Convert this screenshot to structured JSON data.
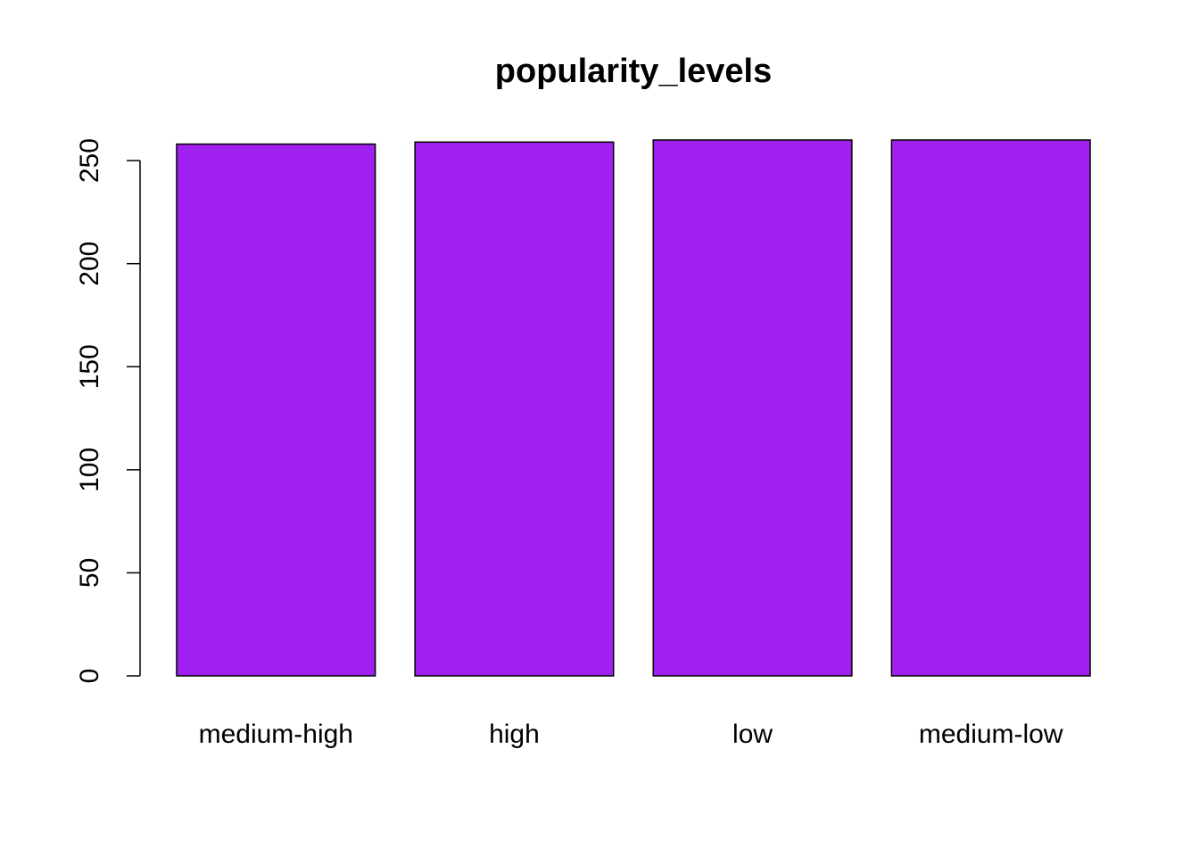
{
  "chart_data": {
    "type": "bar",
    "title": "popularity_levels",
    "xlabel": "",
    "ylabel": "",
    "categories": [
      "medium-high",
      "high",
      "low",
      "medium-low"
    ],
    "values": [
      258,
      259,
      260,
      260
    ],
    "ylim": [
      0,
      260
    ],
    "yticks": [
      0,
      50,
      100,
      150,
      200,
      250
    ],
    "grid": false,
    "legend": "none",
    "bar_color": "#A020F0",
    "bar_edge_color": "#000000"
  }
}
